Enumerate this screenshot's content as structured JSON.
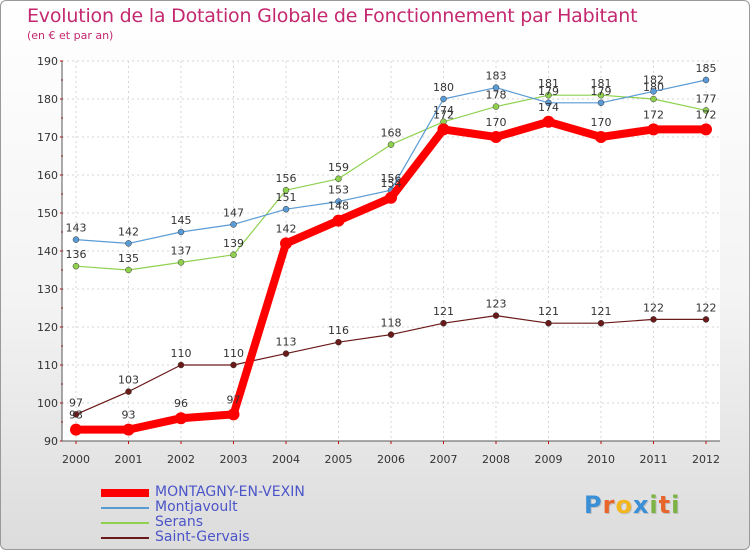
{
  "chart_data": {
    "type": "line",
    "title": "Evolution de la Dotation Globale de Fonctionnement par Habitant",
    "subtitle": "(en € et par an)",
    "xlabel": "",
    "ylabel": "",
    "ylim": [
      90,
      190
    ],
    "y_ticks": [
      90,
      100,
      110,
      120,
      130,
      140,
      150,
      160,
      170,
      180,
      190
    ],
    "categories": [
      "2000",
      "2001",
      "2002",
      "2003",
      "2004",
      "2005",
      "2006",
      "2007",
      "2008",
      "2009",
      "2010",
      "2011",
      "2012"
    ],
    "series": [
      {
        "name": "Saint-Gervais",
        "color": "#6b1a1a",
        "values": [
          97,
          103,
          110,
          110,
          113,
          116,
          118,
          121,
          123,
          121,
          121,
          122,
          122
        ]
      },
      {
        "name": "Serans",
        "color": "#8fd14f",
        "values": [
          136,
          135,
          137,
          139,
          156,
          159,
          168,
          174,
          178,
          181,
          181,
          180,
          177
        ]
      },
      {
        "name": "Montjavoult",
        "color": "#5b9bd5",
        "values": [
          143,
          142,
          145,
          147,
          151,
          153,
          156,
          180,
          183,
          179,
          179,
          182,
          185
        ]
      },
      {
        "name": "MONTAGNY-EN-VEXIN",
        "color": "#ff0000",
        "values": [
          93,
          93,
          96,
          97,
          142,
          148,
          154,
          172,
          170,
          174,
          170,
          172,
          172
        ]
      }
    ],
    "legend_order": [
      "MONTAGNY-EN-VEXIN",
      "Montjavoult",
      "Serans",
      "Saint-Gervais"
    ],
    "legend_position": "bottom-left"
  },
  "logo": {
    "text": "Proxiti",
    "letters": [
      "P",
      "r",
      "o",
      "x",
      "i",
      "t",
      "i"
    ],
    "colors": [
      "#3a8fd6",
      "#e8662b",
      "#f2b61f",
      "#3a8fd6",
      "#7cb342",
      "#e8662b",
      "#7cb342"
    ]
  }
}
